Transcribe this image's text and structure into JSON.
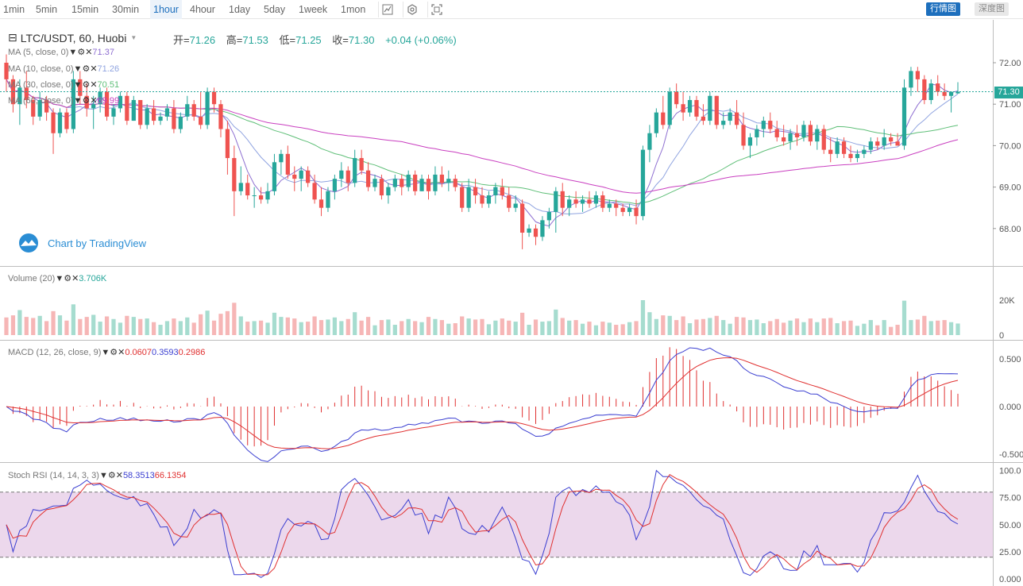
{
  "toolbar": {
    "timeframes": [
      "1min",
      "5min",
      "15min",
      "30min",
      "1hour",
      "4hour",
      "1day",
      "5day",
      "1week",
      "1mon"
    ],
    "active_timeframe": "1hour",
    "icons": [
      "candle-style-icon",
      "indicator-settings-icon",
      "fullscreen-icon"
    ],
    "view_buttons": {
      "candle_label": "行情图",
      "depth_label": "深度图"
    }
  },
  "main": {
    "symbol": "LTC/USDT, 60, Huobi",
    "ohlc": {
      "open_label": "开=",
      "open": "71.26",
      "high_label": "高=",
      "high": "71.53",
      "low_label": "低=",
      "low": "71.25",
      "close_label": "收=",
      "close": "71.30",
      "change": "+0.04 (+0.06%)"
    },
    "ma": [
      {
        "label": "MA (5, close, 0)",
        "value": "71.37",
        "color": "#8e6fd1"
      },
      {
        "label": "MA (10, close, 0)",
        "value": "71.26",
        "color": "#8fa3e0"
      },
      {
        "label": "MA (30, close, 0)",
        "value": "70.51",
        "color": "#5fbf78"
      },
      {
        "label": "MA (60, close, 0)",
        "value": "69.99",
        "color": "#c93fc0"
      }
    ],
    "price_axis": [
      "72.00",
      "71.00",
      "70.00",
      "69.00",
      "68.00"
    ],
    "last_price": "71.30",
    "watermark": "Chart by TradingView"
  },
  "volume": {
    "label": "Volume (20)",
    "value": "3.706K",
    "axis": [
      "20K",
      "0"
    ]
  },
  "macd": {
    "label": "MACD (12, 26, close, 9)",
    "values": [
      "0.0607",
      "0.3593",
      "0.2986"
    ],
    "axis": [
      "0.500",
      "0.000",
      "-0.500"
    ]
  },
  "stoch": {
    "label": "Stoch RSI (14, 14, 3, 3)",
    "values": [
      "58.3513",
      "66.1354"
    ],
    "axis": [
      "100.0",
      "75.00",
      "50.00",
      "25.00",
      "0.000"
    ]
  },
  "colors": {
    "up": "#26a69a",
    "down": "#ef5350",
    "up_vol": "#a6dccf",
    "down_vol": "#f6b6b6",
    "macd_line": "#3b3fd1",
    "signal_line": "#e03030",
    "stoch_band": "#e6cbe6"
  },
  "chart_data": {
    "type": "candlestick",
    "candles": [
      [
        72.0,
        72.2,
        71.3,
        71.6
      ],
      [
        71.6,
        71.7,
        70.8,
        71.0
      ],
      [
        71.0,
        71.6,
        70.5,
        71.4
      ],
      [
        71.4,
        71.8,
        70.9,
        71.1
      ],
      [
        71.1,
        71.2,
        70.5,
        70.7
      ],
      [
        70.7,
        71.3,
        70.6,
        71.1
      ],
      [
        71.1,
        71.2,
        70.6,
        70.8
      ],
      [
        70.8,
        70.9,
        69.8,
        70.3
      ],
      [
        70.3,
        70.9,
        70.2,
        70.8
      ],
      [
        70.8,
        70.9,
        70.3,
        70.4
      ],
      [
        70.4,
        71.8,
        70.3,
        71.6
      ],
      [
        71.6,
        71.8,
        71.0,
        71.2
      ],
      [
        71.2,
        71.5,
        70.7,
        70.9
      ],
      [
        70.9,
        71.2,
        70.4,
        71.0
      ],
      [
        71.0,
        71.4,
        70.8,
        71.3
      ],
      [
        71.3,
        71.4,
        70.6,
        70.7
      ],
      [
        70.7,
        71.0,
        70.5,
        70.9
      ],
      [
        70.9,
        71.3,
        70.8,
        71.2
      ],
      [
        71.2,
        71.3,
        70.5,
        70.6
      ],
      [
        70.6,
        71.2,
        70.6,
        71.1
      ],
      [
        71.1,
        71.1,
        70.4,
        70.5
      ],
      [
        70.5,
        71.0,
        70.4,
        70.9
      ],
      [
        70.9,
        71.1,
        70.5,
        70.6
      ],
      [
        70.6,
        70.8,
        70.5,
        70.7
      ],
      [
        70.7,
        71.0,
        70.6,
        70.9
      ],
      [
        70.9,
        71.1,
        70.3,
        70.4
      ],
      [
        70.4,
        70.8,
        70.3,
        70.7
      ],
      [
        70.7,
        71.2,
        70.6,
        71.0
      ],
      [
        71.0,
        71.1,
        70.6,
        70.7
      ],
      [
        70.7,
        71.3,
        70.4,
        70.5
      ],
      [
        70.5,
        71.4,
        70.4,
        71.3
      ],
      [
        71.3,
        71.4,
        70.8,
        71.0
      ],
      [
        71.0,
        71.1,
        70.2,
        70.4
      ],
      [
        70.4,
        70.6,
        69.3,
        69.7
      ],
      [
        69.7,
        70.0,
        68.3,
        68.9
      ],
      [
        68.9,
        69.5,
        68.8,
        69.1
      ],
      [
        69.1,
        69.3,
        68.7,
        68.8
      ],
      [
        68.8,
        69.0,
        68.5,
        68.8
      ],
      [
        68.8,
        69.0,
        68.6,
        68.7
      ],
      [
        68.7,
        69.1,
        68.6,
        68.9
      ],
      [
        68.9,
        69.8,
        68.8,
        69.6
      ],
      [
        69.6,
        69.9,
        69.3,
        69.8
      ],
      [
        69.8,
        70.0,
        69.2,
        69.3
      ],
      [
        69.3,
        69.5,
        68.9,
        69.2
      ],
      [
        69.2,
        69.5,
        68.9,
        69.4
      ],
      [
        69.4,
        69.5,
        69.0,
        69.1
      ],
      [
        69.1,
        69.3,
        68.6,
        68.7
      ],
      [
        68.7,
        69.0,
        68.3,
        68.5
      ],
      [
        68.5,
        69.0,
        68.4,
        68.9
      ],
      [
        68.9,
        69.3,
        68.7,
        69.2
      ],
      [
        69.2,
        69.6,
        69.0,
        69.4
      ],
      [
        69.4,
        69.5,
        68.9,
        69.1
      ],
      [
        69.1,
        69.9,
        69.0,
        69.7
      ],
      [
        69.7,
        69.9,
        69.3,
        69.4
      ],
      [
        69.4,
        69.6,
        68.9,
        69.0
      ],
      [
        69.0,
        69.3,
        68.9,
        69.2
      ],
      [
        69.2,
        69.3,
        68.7,
        68.8
      ],
      [
        68.8,
        69.1,
        68.6,
        69.0
      ],
      [
        69.0,
        69.3,
        68.9,
        69.2
      ],
      [
        69.2,
        69.3,
        68.8,
        69.0
      ],
      [
        69.0,
        69.4,
        68.9,
        69.3
      ],
      [
        69.3,
        69.4,
        68.8,
        68.9
      ],
      [
        68.9,
        69.3,
        68.9,
        69.2
      ],
      [
        69.2,
        69.3,
        68.7,
        68.9
      ],
      [
        68.9,
        69.5,
        68.8,
        69.3
      ],
      [
        69.3,
        69.5,
        69.0,
        69.1
      ],
      [
        69.1,
        69.4,
        68.9,
        69.2
      ],
      [
        69.2,
        69.3,
        68.9,
        69.0
      ],
      [
        69.0,
        69.1,
        68.4,
        68.5
      ],
      [
        68.5,
        69.2,
        68.4,
        69.0
      ],
      [
        69.0,
        69.2,
        68.6,
        68.8
      ],
      [
        68.8,
        69.0,
        68.5,
        68.6
      ],
      [
        68.6,
        68.9,
        68.5,
        68.8
      ],
      [
        68.8,
        69.1,
        68.6,
        69.0
      ],
      [
        69.0,
        69.2,
        68.7,
        68.8
      ],
      [
        68.8,
        69.0,
        68.4,
        68.5
      ],
      [
        68.5,
        68.8,
        68.4,
        68.6
      ],
      [
        68.6,
        68.7,
        67.5,
        67.9
      ],
      [
        67.9,
        68.1,
        67.8,
        68.0
      ],
      [
        68.0,
        68.1,
        67.6,
        67.8
      ],
      [
        67.8,
        68.3,
        67.7,
        68.2
      ],
      [
        68.2,
        68.5,
        68.0,
        68.4
      ],
      [
        68.4,
        69.0,
        67.9,
        68.9
      ],
      [
        68.9,
        69.1,
        68.3,
        68.5
      ],
      [
        68.5,
        68.8,
        68.3,
        68.7
      ],
      [
        68.7,
        68.9,
        68.5,
        68.6
      ],
      [
        68.6,
        68.8,
        68.4,
        68.7
      ],
      [
        68.7,
        68.9,
        68.5,
        68.6
      ],
      [
        68.6,
        68.9,
        68.5,
        68.8
      ],
      [
        68.8,
        68.9,
        68.4,
        68.5
      ],
      [
        68.5,
        68.7,
        68.4,
        68.6
      ],
      [
        68.6,
        68.7,
        68.3,
        68.5
      ],
      [
        68.5,
        68.6,
        68.3,
        68.4
      ],
      [
        68.4,
        68.6,
        68.3,
        68.5
      ],
      [
        68.5,
        68.7,
        68.1,
        68.3
      ],
      [
        68.3,
        70.0,
        68.2,
        69.9
      ],
      [
        69.9,
        70.5,
        69.6,
        70.3
      ],
      [
        70.3,
        70.9,
        70.2,
        70.8
      ],
      [
        70.8,
        71.2,
        70.4,
        70.5
      ],
      [
        70.5,
        71.4,
        70.4,
        71.3
      ],
      [
        71.3,
        71.5,
        70.9,
        71.0
      ],
      [
        71.0,
        71.3,
        70.6,
        70.8
      ],
      [
        70.8,
        71.2,
        70.7,
        71.1
      ],
      [
        71.1,
        71.2,
        70.6,
        70.7
      ],
      [
        70.7,
        71.0,
        70.5,
        70.6
      ],
      [
        70.6,
        71.3,
        70.5,
        71.2
      ],
      [
        71.2,
        71.2,
        70.4,
        70.5
      ],
      [
        70.5,
        70.8,
        70.4,
        70.6
      ],
      [
        70.6,
        70.9,
        70.5,
        70.8
      ],
      [
        70.8,
        71.1,
        70.4,
        70.5
      ],
      [
        70.5,
        70.8,
        69.9,
        70.0
      ],
      [
        70.0,
        70.3,
        69.7,
        70.2
      ],
      [
        70.2,
        70.5,
        70.0,
        70.4
      ],
      [
        70.4,
        70.7,
        70.2,
        70.6
      ],
      [
        70.6,
        70.8,
        70.3,
        70.4
      ],
      [
        70.4,
        70.6,
        70.1,
        70.2
      ],
      [
        70.2,
        70.5,
        70.0,
        70.1
      ],
      [
        70.1,
        70.4,
        69.9,
        70.3
      ],
      [
        70.3,
        70.5,
        70.0,
        70.2
      ],
      [
        70.2,
        70.6,
        70.1,
        70.5
      ],
      [
        70.5,
        70.6,
        70.0,
        70.1
      ],
      [
        70.1,
        70.5,
        69.9,
        70.4
      ],
      [
        70.4,
        70.5,
        69.8,
        69.9
      ],
      [
        69.9,
        70.2,
        69.6,
        69.8
      ],
      [
        69.8,
        70.2,
        69.7,
        70.1
      ],
      [
        70.1,
        70.2,
        69.7,
        69.8
      ],
      [
        69.8,
        70.0,
        69.6,
        69.7
      ],
      [
        69.7,
        69.9,
        69.6,
        69.8
      ],
      [
        69.8,
        70.0,
        69.7,
        69.9
      ],
      [
        69.9,
        70.2,
        69.8,
        70.1
      ],
      [
        70.1,
        70.2,
        69.9,
        70.0
      ],
      [
        70.0,
        70.4,
        69.9,
        70.2
      ],
      [
        70.2,
        70.3,
        70.0,
        70.1
      ],
      [
        70.1,
        70.3,
        70.0,
        70.0
      ],
      [
        70.0,
        71.6,
        69.9,
        71.4
      ],
      [
        71.4,
        71.9,
        71.2,
        71.8
      ],
      [
        71.8,
        71.9,
        71.3,
        71.6
      ],
      [
        71.6,
        71.7,
        71.0,
        71.1
      ],
      [
        71.1,
        71.6,
        71.0,
        71.5
      ],
      [
        71.5,
        71.7,
        71.2,
        71.3
      ],
      [
        71.3,
        71.5,
        71.1,
        71.2
      ],
      [
        71.2,
        71.3,
        70.8,
        71.3
      ],
      [
        71.26,
        71.53,
        71.25,
        71.3
      ]
    ]
  }
}
